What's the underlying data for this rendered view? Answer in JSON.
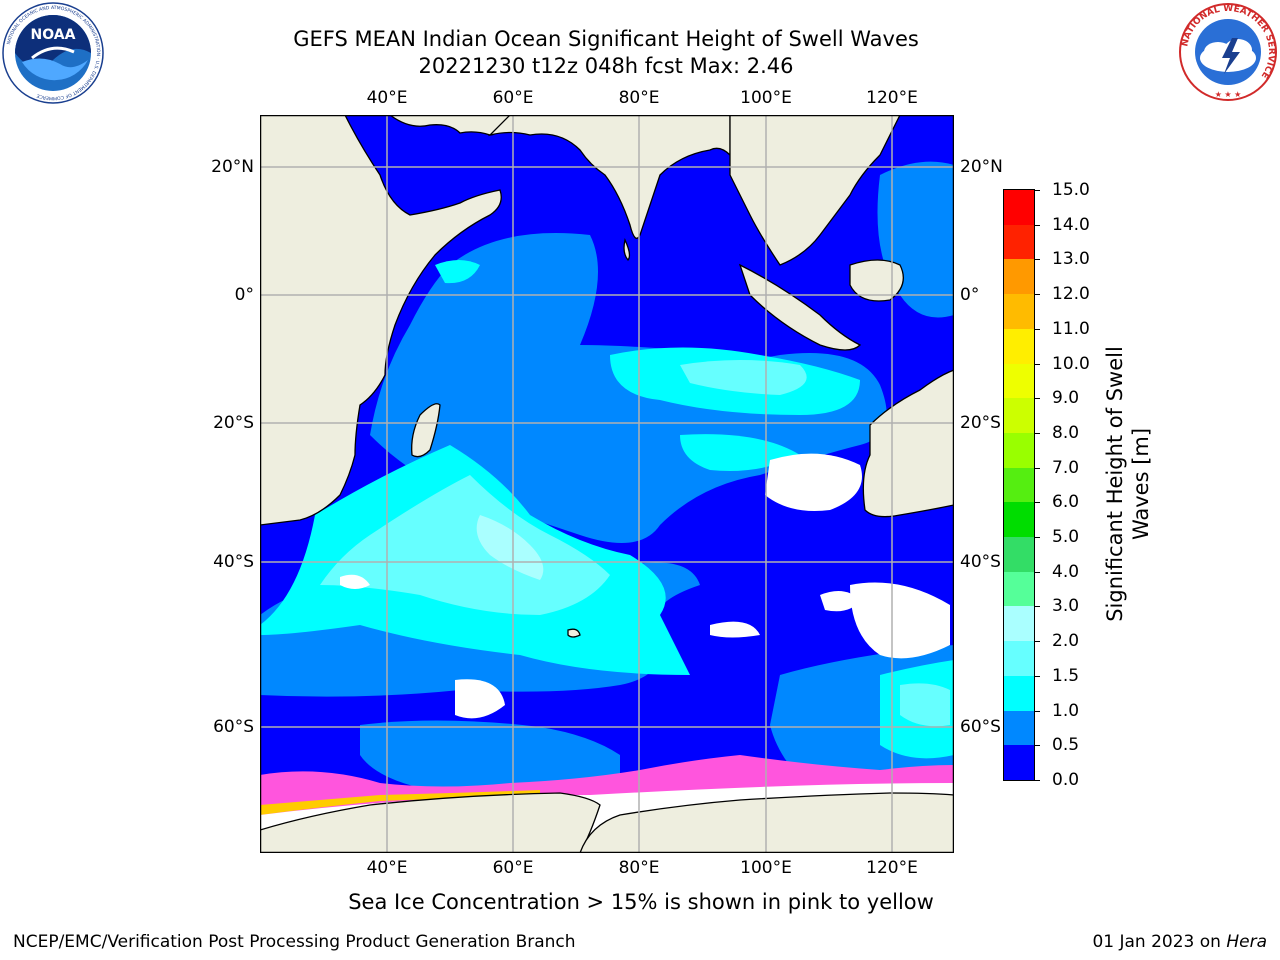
{
  "title": {
    "line1": "GEFS MEAN Indian Ocean Significant Height of Swell Waves",
    "line2": "20221230 t12z 048h fcst   Max: 2.46"
  },
  "logos": {
    "noaa": {
      "text": "NOAA",
      "ring_text": "NATIONAL OCEANIC AND ATMOSPHERIC ADMINISTRATION · U.S. DEPARTMENT OF COMMERCE"
    },
    "nws": {
      "ring_text": "NATIONAL WEATHER SERVICE"
    }
  },
  "map": {
    "lon_labels": [
      "40°E",
      "60°E",
      "80°E",
      "100°E",
      "120°E"
    ],
    "lat_labels": [
      "20°N",
      "0°",
      "20°S",
      "40°S",
      "60°S"
    ],
    "colors": {
      "land": "#eeeedf",
      "grid": "#b0b0b0",
      "coast": "#000000"
    }
  },
  "colorbar": {
    "title_line1": "Significant Height of Swell",
    "title_line2": "Waves [m]",
    "ticks": [
      "15.0",
      "14.0",
      "13.0",
      "12.0",
      "11.0",
      "10.0",
      "9.0",
      "8.0",
      "7.0",
      "6.0",
      "5.0",
      "4.0",
      "3.0",
      "2.0",
      "1.5",
      "1.0",
      "0.5",
      "0.0"
    ],
    "colors_top_to_bottom": [
      "#ff0000",
      "#ff2200",
      "#ff5500",
      "#ff7700",
      "#ff9900",
      "#ffbb00",
      "#ffee00",
      "#eeff00",
      "#ccff00",
      "#99ff00",
      "#55ee11",
      "#00dd00",
      "#33dd66",
      "#55ff99",
      "#aaffff",
      "#66ffff",
      "#00ffff",
      "#0088ff",
      "#0000ff"
    ]
  },
  "footer": {
    "ice_note": "Sea Ice Concentration > 15% is shown in pink to yellow",
    "credit": "NCEP/EMC/Verification Post Processing Product Generation Branch",
    "date_prefix": "01 Jan 2023 on ",
    "date_machine": "Hera"
  }
}
